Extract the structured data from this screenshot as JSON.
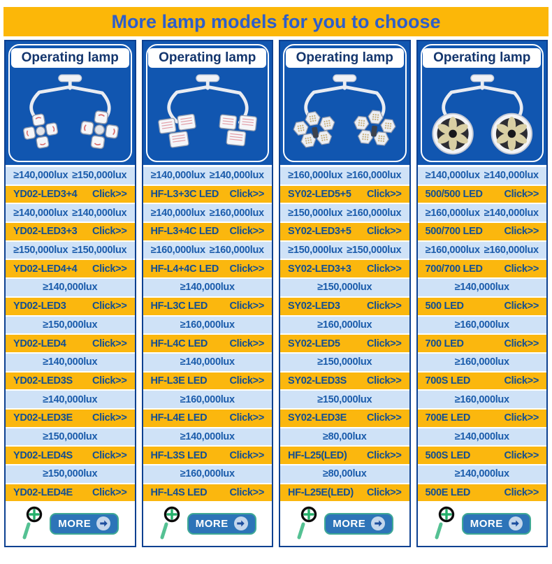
{
  "banner": {
    "title": "More lamp models for you to choose"
  },
  "colors": {
    "banner_bg": "#fcb708",
    "banner_text": "#2e5ec9",
    "panel_blue": "#1156b0",
    "panel_border": "#0d4191",
    "spec_row_bg": "#cfe2f7",
    "spec_row_text": "#1b5cab",
    "model_row_bg": "#fbb70e",
    "model_row_text": "#134f92",
    "more_button_bg": "#2d74b8",
    "more_button_border": "#3fa995",
    "magnifier_green": "#2bb070"
  },
  "columns": [
    {
      "header": "Operating lamp",
      "lamp": "dual-petal-lamp-image",
      "rows": [
        {
          "type": "spec",
          "values": [
            "≥140,000lux",
            "≥150,000lux"
          ]
        },
        {
          "type": "model",
          "model": "YD02-LED3+4",
          "action": "Click>>"
        },
        {
          "type": "spec",
          "values": [
            "≥140,000lux",
            "≥140,000lux"
          ]
        },
        {
          "type": "model",
          "model": "YD02-LED3+3",
          "action": "Click>>"
        },
        {
          "type": "spec",
          "values": [
            "≥150,000lux",
            "≥150,000lux"
          ]
        },
        {
          "type": "model",
          "model": "YD02-LED4+4",
          "action": "Click>>"
        },
        {
          "type": "spec",
          "values": [
            "≥140,000lux"
          ]
        },
        {
          "type": "model",
          "model": "YD02-LED3",
          "action": "Click>>"
        },
        {
          "type": "spec",
          "values": [
            "≥150,000lux"
          ]
        },
        {
          "type": "model",
          "model": "YD02-LED4",
          "action": "Click>>"
        },
        {
          "type": "spec",
          "values": [
            "≥140,000lux"
          ]
        },
        {
          "type": "model",
          "model": "YD02-LED3S",
          "action": "Click>>"
        },
        {
          "type": "spec",
          "values": [
            "≥140,000lux"
          ]
        },
        {
          "type": "model",
          "model": "YD02-LED3E",
          "action": "Click>>"
        },
        {
          "type": "spec",
          "values": [
            "≥150,000lux"
          ]
        },
        {
          "type": "model",
          "model": "YD02-LED4S",
          "action": "Click>>"
        },
        {
          "type": "spec",
          "values": [
            "≥150,000lux"
          ]
        },
        {
          "type": "model",
          "model": "YD02-LED4E",
          "action": "Click>>"
        }
      ],
      "footer": {
        "more_label": "MORE",
        "zoom_icon": "magnifier-plus-icon",
        "arrow_icon": "arrow-right-icon"
      }
    },
    {
      "header": "Operating lamp",
      "lamp": "dual-square-lamp-image",
      "rows": [
        {
          "type": "spec",
          "values": [
            "≥140,000lux",
            "≥140,000lux"
          ]
        },
        {
          "type": "model",
          "model": "HF-L3+3C LED",
          "action": "Click>>"
        },
        {
          "type": "spec",
          "values": [
            "≥140,000lux",
            "≥160,000lux"
          ]
        },
        {
          "type": "model",
          "model": "HF-L3+4C LED",
          "action": "Click>>"
        },
        {
          "type": "spec",
          "values": [
            "≥160,000lux",
            "≥160,000lux"
          ]
        },
        {
          "type": "model",
          "model": "HF-L4+4C LED",
          "action": "Click>>"
        },
        {
          "type": "spec",
          "values": [
            "≥140,000lux"
          ]
        },
        {
          "type": "model",
          "model": "HF-L3C LED",
          "action": "Click>>"
        },
        {
          "type": "spec",
          "values": [
            "≥160,000lux"
          ]
        },
        {
          "type": "model",
          "model": "HF-L4C LED",
          "action": "Click>>"
        },
        {
          "type": "spec",
          "values": [
            "≥140,000lux"
          ]
        },
        {
          "type": "model",
          "model": "HF-L3E LED",
          "action": "Click>>"
        },
        {
          "type": "spec",
          "values": [
            "≥160,000lux"
          ]
        },
        {
          "type": "model",
          "model": "HF-L4E LED",
          "action": "Click>>"
        },
        {
          "type": "spec",
          "values": [
            "≥140,000lux"
          ]
        },
        {
          "type": "model",
          "model": "HF-L3S LED",
          "action": "Click>>"
        },
        {
          "type": "spec",
          "values": [
            "≥160,000lux"
          ]
        },
        {
          "type": "model",
          "model": "HF-L4S LED",
          "action": "Click>>"
        }
      ],
      "footer": {
        "more_label": "MORE",
        "zoom_icon": "magnifier-plus-icon",
        "arrow_icon": "arrow-right-icon"
      }
    },
    {
      "header": "Operating lamp",
      "lamp": "dual-hex-lamp-image",
      "rows": [
        {
          "type": "spec",
          "values": [
            "≥160,000lux",
            "≥160,000lux"
          ]
        },
        {
          "type": "model",
          "model": "SY02-LED5+5",
          "action": "Click>>"
        },
        {
          "type": "spec",
          "values": [
            "≥150,000lux",
            "≥160,000lux"
          ]
        },
        {
          "type": "model",
          "model": "SY02-LED3+5",
          "action": "Click>>"
        },
        {
          "type": "spec",
          "values": [
            "≥150,000lux",
            "≥150,000lux"
          ]
        },
        {
          "type": "model",
          "model": "SY02-LED3+3",
          "action": "Click>>"
        },
        {
          "type": "spec",
          "values": [
            "≥150,000lux"
          ]
        },
        {
          "type": "model",
          "model": "SY02-LED3",
          "action": "Click>>"
        },
        {
          "type": "spec",
          "values": [
            "≥160,000lux"
          ]
        },
        {
          "type": "model",
          "model": "SY02-LED5",
          "action": "Click>>"
        },
        {
          "type": "spec",
          "values": [
            "≥150,000lux"
          ]
        },
        {
          "type": "model",
          "model": "SY02-LED3S",
          "action": "Click>>"
        },
        {
          "type": "spec",
          "values": [
            "≥150,000lux"
          ]
        },
        {
          "type": "model",
          "model": "SY02-LED3E",
          "action": "Click>>"
        },
        {
          "type": "spec",
          "values": [
            "≥80,00lux"
          ]
        },
        {
          "type": "model",
          "model": "HF-L25(LED)",
          "action": "Click>>"
        },
        {
          "type": "spec",
          "values": [
            "≥80,00lux"
          ]
        },
        {
          "type": "model",
          "model": "HF-L25E(LED)",
          "action": "Click>>"
        }
      ],
      "footer": {
        "more_label": "MORE",
        "zoom_icon": "magnifier-plus-icon",
        "arrow_icon": "arrow-right-icon"
      }
    },
    {
      "header": "Operating lamp",
      "lamp": "dual-round-lamp-image",
      "rows": [
        {
          "type": "spec",
          "values": [
            "≥140,000lux",
            "≥140,000lux"
          ]
        },
        {
          "type": "model",
          "model": "500/500 LED",
          "action": "Click>>"
        },
        {
          "type": "spec",
          "values": [
            "≥160,000lux",
            "≥140,000lux"
          ]
        },
        {
          "type": "model",
          "model": "500/700 LED",
          "action": "Click>>"
        },
        {
          "type": "spec",
          "values": [
            "≥160,000lux",
            "≥160,000lux"
          ]
        },
        {
          "type": "model",
          "model": "700/700 LED",
          "action": "Click>>"
        },
        {
          "type": "spec",
          "values": [
            "≥140,000lux"
          ]
        },
        {
          "type": "model",
          "model": "500 LED",
          "action": "Click>>"
        },
        {
          "type": "spec",
          "values": [
            "≥160,000lux"
          ]
        },
        {
          "type": "model",
          "model": "700 LED",
          "action": "Click>>"
        },
        {
          "type": "spec",
          "values": [
            "≥160,000lux"
          ]
        },
        {
          "type": "model",
          "model": "700S LED",
          "action": "Click>>"
        },
        {
          "type": "spec",
          "values": [
            "≥160,000lux"
          ]
        },
        {
          "type": "model",
          "model": "700E LED",
          "action": "Click>>"
        },
        {
          "type": "spec",
          "values": [
            "≥140,000lux"
          ]
        },
        {
          "type": "model",
          "model": "500S LED",
          "action": "Click>>"
        },
        {
          "type": "spec",
          "values": [
            "≥140,000lux"
          ]
        },
        {
          "type": "model",
          "model": "500E LED",
          "action": "Click>>"
        }
      ],
      "footer": {
        "more_label": "MORE",
        "zoom_icon": "magnifier-plus-icon",
        "arrow_icon": "arrow-right-icon"
      }
    }
  ]
}
